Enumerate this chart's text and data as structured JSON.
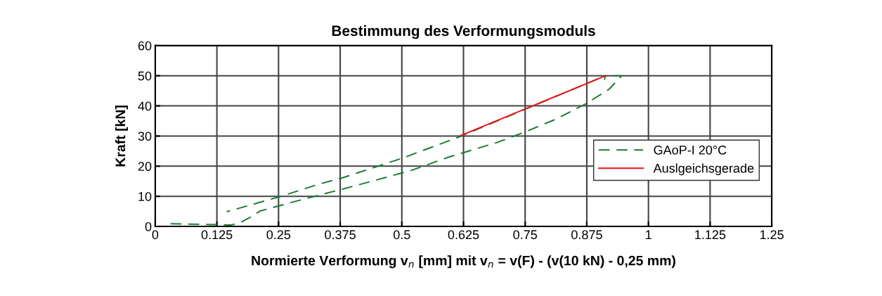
{
  "chart_data": {
    "type": "line",
    "title": "Bestimmung des Verformungsmoduls",
    "xlabel": "Normierte Verformung v$_{n}$ [mm] mit v$_{n}$ = v(F) - (v(10 kN) - 0,25 mm)",
    "ylabel": "Kraft [kN]",
    "xlim": [
      0,
      1.25
    ],
    "xticks": [
      0,
      0.125,
      0.25,
      0.375,
      0.5,
      0.625,
      0.75,
      0.875,
      1,
      1.125,
      1.25
    ],
    "ylim": [
      0,
      60
    ],
    "yticks": [
      0,
      10,
      20,
      30,
      40,
      50,
      60
    ],
    "grid": true,
    "legend": "bottom right",
    "series": [
      {
        "name": "GAoP-I 20°C",
        "color": "#1a7a32",
        "line_style": "dashed",
        "x": [
          0.031,
          0.155,
          0.174,
          0.198,
          0.212,
          0.302,
          0.373,
          0.444,
          0.521,
          0.597,
          0.692,
          0.749,
          0.811,
          0.872,
          0.92,
          0.946,
          0.913,
          0.911,
          0.913,
          0.616,
          0.502,
          0.379,
          0.331,
          0.322,
          0.251,
          0.145
        ],
        "values": [
          0.9,
          0.5,
          1.4,
          3.5,
          5.1,
          9.1,
          12.1,
          15.2,
          18.7,
          23.1,
          27.8,
          31.3,
          35.5,
          40.6,
          45.5,
          50,
          50,
          48.8,
          50,
          29.7,
          22.7,
          16.1,
          14.0,
          13.5,
          9.8,
          4.9
        ]
      },
      {
        "name": "Auslgeichsgerade",
        "color": "#e8141c",
        "line_style": "solid",
        "x": [
          0.619,
          0.913
        ],
        "values": [
          30.1,
          50
        ]
      }
    ]
  }
}
